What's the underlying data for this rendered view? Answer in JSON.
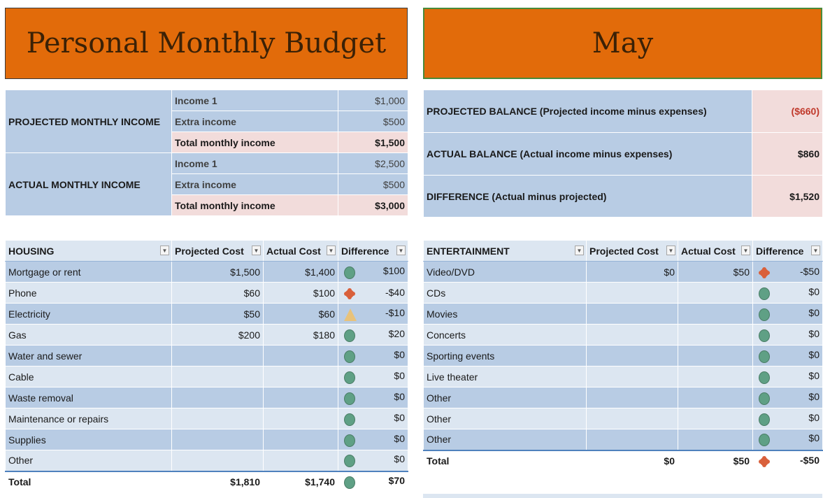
{
  "title": "Personal Monthly Budget",
  "month": "May",
  "income": {
    "projected_label": "PROJECTED MONTHLY INCOME",
    "actual_label": "ACTUAL MONTHLY INCOME",
    "projected": [
      {
        "label": "Income 1",
        "value": "$1,000"
      },
      {
        "label": "Extra income",
        "value": "$500"
      },
      {
        "label": "Total monthly income",
        "value": "$1,500"
      }
    ],
    "actual": [
      {
        "label": "Income 1",
        "value": "$2,500"
      },
      {
        "label": "Extra income",
        "value": "$500"
      },
      {
        "label": "Total monthly income",
        "value": "$3,000"
      }
    ]
  },
  "balance": [
    {
      "label": "PROJECTED BALANCE (Projected income minus expenses)",
      "value": "($660)"
    },
    {
      "label": "ACTUAL BALANCE (Actual income minus expenses)",
      "value": "$860"
    },
    {
      "label": "DIFFERENCE (Actual minus projected)",
      "value": "$1,520"
    }
  ],
  "housing": {
    "headers": [
      "HOUSING",
      "Projected Cost",
      "Actual Cost",
      "Difference"
    ],
    "rows": [
      {
        "item": "Mortgage or rent",
        "projected": "$1,500",
        "actual": "$1,400",
        "indicator": "green-circle-icon",
        "difference": "$100"
      },
      {
        "item": "Phone",
        "projected": "$60",
        "actual": "$100",
        "indicator": "red-diamond-icon",
        "difference": "-$40"
      },
      {
        "item": "Electricity",
        "projected": "$50",
        "actual": "$60",
        "indicator": "yellow-triangle-icon",
        "difference": "-$10"
      },
      {
        "item": "Gas",
        "projected": "$200",
        "actual": "$180",
        "indicator": "green-circle-icon",
        "difference": "$20"
      },
      {
        "item": "Water and sewer",
        "projected": "",
        "actual": "",
        "indicator": "green-circle-icon",
        "difference": "$0"
      },
      {
        "item": "Cable",
        "projected": "",
        "actual": "",
        "indicator": "green-circle-icon",
        "difference": "$0"
      },
      {
        "item": "Waste removal",
        "projected": "",
        "actual": "",
        "indicator": "green-circle-icon",
        "difference": "$0"
      },
      {
        "item": "Maintenance or repairs",
        "projected": "",
        "actual": "",
        "indicator": "green-circle-icon",
        "difference": "$0"
      },
      {
        "item": "Supplies",
        "projected": "",
        "actual": "",
        "indicator": "green-circle-icon",
        "difference": "$0"
      },
      {
        "item": "Other",
        "projected": "",
        "actual": "",
        "indicator": "green-circle-icon",
        "difference": "$0"
      }
    ],
    "total": {
      "item": "Total",
      "projected": "$1,810",
      "actual": "$1,740",
      "indicator": "green-circle-icon",
      "difference": "$70"
    }
  },
  "entertainment": {
    "headers": [
      "ENTERTAINMENT",
      "Projected Cost",
      "Actual Cost",
      "Difference"
    ],
    "rows": [
      {
        "item": "Video/DVD",
        "projected": "$0",
        "actual": "$50",
        "indicator": "red-diamond-icon",
        "difference": "-$50"
      },
      {
        "item": "CDs",
        "projected": "",
        "actual": "",
        "indicator": "green-circle-icon",
        "difference": "$0"
      },
      {
        "item": "Movies",
        "projected": "",
        "actual": "",
        "indicator": "green-circle-icon",
        "difference": "$0"
      },
      {
        "item": "Concerts",
        "projected": "",
        "actual": "",
        "indicator": "green-circle-icon",
        "difference": "$0"
      },
      {
        "item": "Sporting events",
        "projected": "",
        "actual": "",
        "indicator": "green-circle-icon",
        "difference": "$0"
      },
      {
        "item": "Live theater",
        "projected": "",
        "actual": "",
        "indicator": "green-circle-icon",
        "difference": "$0"
      },
      {
        "item": "Other",
        "projected": "",
        "actual": "",
        "indicator": "green-circle-icon",
        "difference": "$0"
      },
      {
        "item": "Other",
        "projected": "",
        "actual": "",
        "indicator": "green-circle-icon",
        "difference": "$0"
      },
      {
        "item": "Other",
        "projected": "",
        "actual": "",
        "indicator": "green-circle-icon",
        "difference": "$0"
      }
    ],
    "total": {
      "item": "Total",
      "projected": "$0",
      "actual": "$50",
      "indicator": "red-diamond-icon",
      "difference": "-$50"
    }
  },
  "colors": {
    "banner": "#e26b0a",
    "blue": "#b8cce4",
    "light": "#dce6f1",
    "pink": "#f2dcdb",
    "negative": "#c0392b"
  }
}
